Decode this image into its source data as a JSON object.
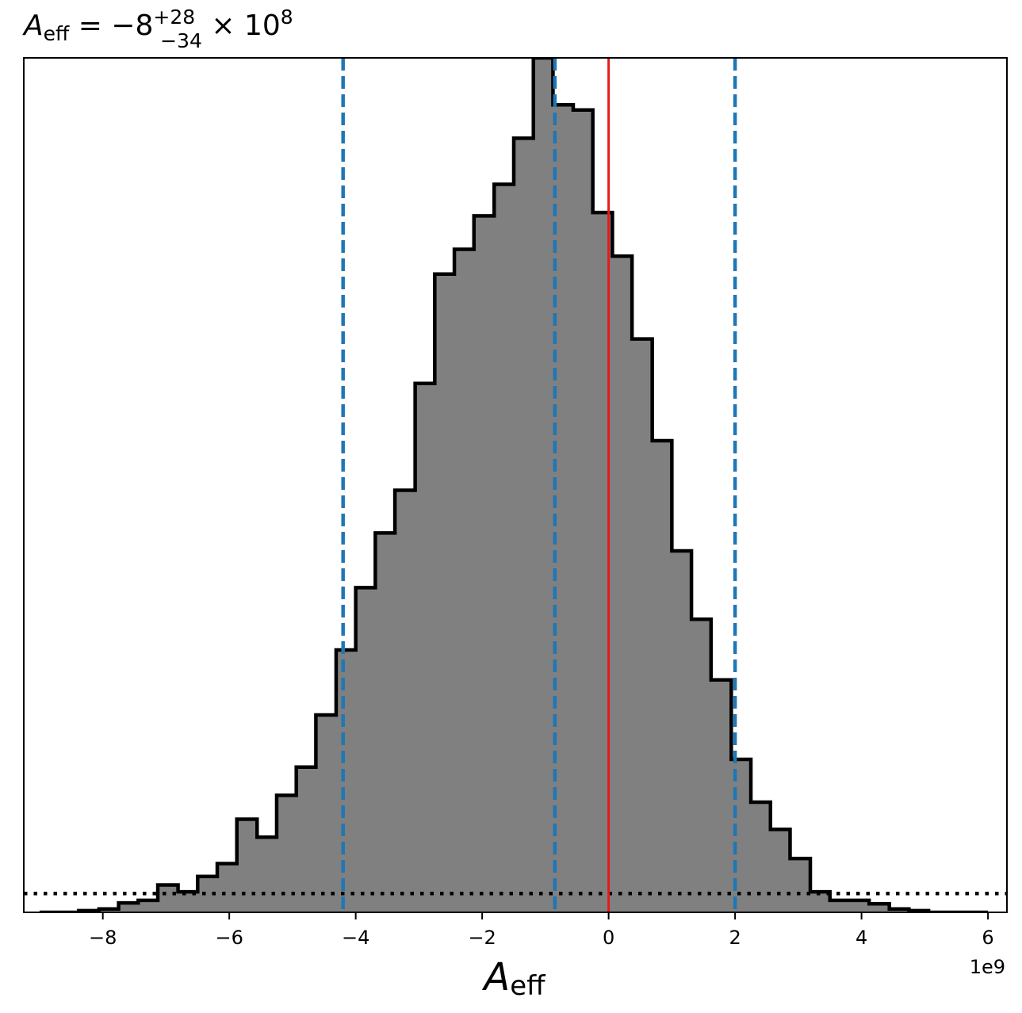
{
  "chart_data": {
    "type": "histogram",
    "title": {
      "symbol": "A",
      "subscript": "eff",
      "equals": " = −8",
      "upper": "+28",
      "lower": "−34",
      "times": " × 10",
      "exponent": "8"
    },
    "xlabel": {
      "symbol": "A",
      "subscript": "eff"
    },
    "x_offset_label": "1e9",
    "xlim": [
      -9.25,
      6.3
    ],
    "xticks": [
      -8,
      -6,
      -4,
      -2,
      0,
      2,
      4,
      6
    ],
    "xtick_labels": [
      "−8",
      "−6",
      "−4",
      "−2",
      "0",
      "2",
      "4",
      "6"
    ],
    "ylim": [
      0,
      1000
    ],
    "bin_edges": [
      -9.0,
      -8.69,
      -8.38,
      -8.06,
      -7.75,
      -7.44,
      -7.13,
      -6.81,
      -6.5,
      -6.19,
      -5.88,
      -5.56,
      -5.25,
      -4.94,
      -4.63,
      -4.31,
      -4.0,
      -3.69,
      -3.38,
      -3.06,
      -2.75,
      -2.44,
      -2.13,
      -1.81,
      -1.5,
      -1.19,
      -0.88,
      -0.56,
      -0.25,
      0.06,
      0.37,
      0.69,
      1.0,
      1.31,
      1.62,
      1.94,
      2.25,
      2.56,
      2.87,
      3.19,
      3.5,
      3.81,
      4.12,
      4.44,
      4.75,
      5.06,
      5.37,
      5.69,
      6.0
    ],
    "counts": [
      0,
      0,
      2,
      4,
      11,
      14,
      32,
      24,
      42,
      57,
      109,
      88,
      137,
      170,
      231,
      307,
      380,
      444,
      494,
      619,
      747,
      776,
      815,
      852,
      906,
      1000,
      945,
      939,
      819,
      768,
      671,
      552,
      423,
      343,
      272,
      179,
      129,
      97,
      63,
      24,
      14,
      14,
      10,
      4,
      2,
      0,
      0,
      0
    ],
    "bar_color": "#808080",
    "edge_color": "#000000",
    "lines": [
      {
        "name": "lower-bound",
        "x": -4.2,
        "style": "dashed",
        "color": "#1f77b4"
      },
      {
        "name": "median",
        "x": -0.85,
        "style": "dashed",
        "color": "#1f77b4"
      },
      {
        "name": "upper-bound",
        "x": 2.0,
        "style": "dashed",
        "color": "#1f77b4"
      },
      {
        "name": "reference",
        "x": 0.0,
        "style": "solid",
        "color": "#e41a1c"
      }
    ],
    "prior_level": 22,
    "prior_style": "dotted"
  }
}
